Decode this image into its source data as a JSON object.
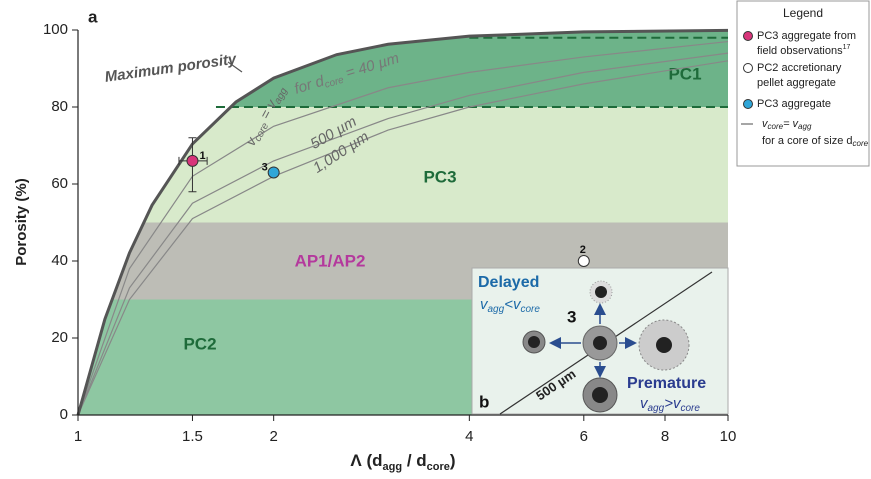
{
  "chart_data": {
    "type": "scatter",
    "panel_label": "a",
    "y_label": "Porosity (%)",
    "x_label": {
      "symbol": "Λ",
      "open": "(d",
      "sub1": "agg",
      "mid": " / d",
      "sub2": "core",
      "close": ")"
    },
    "xscale": "log",
    "xlim": [
      1,
      10
    ],
    "xticks": [
      1,
      1.5,
      2,
      4,
      6,
      8,
      10
    ],
    "ylim": [
      0,
      100
    ],
    "yticks": [
      0,
      20,
      40,
      60,
      80,
      100
    ],
    "max_curve": {
      "label": "Maximum porosity",
      "color": "#555555",
      "x": [
        1,
        1.1,
        1.2,
        1.3,
        1.5,
        1.75,
        2,
        2.5,
        3,
        4,
        6,
        10
      ],
      "values": [
        0,
        24.9,
        42.1,
        54.5,
        70.4,
        81.3,
        87.5,
        93.6,
        96.3,
        98.4,
        99.5,
        99.9
      ]
    },
    "regions": [
      {
        "label": "PC2",
        "ylim": [
          0,
          30
        ],
        "color": "#8ec7a2",
        "label_color": "#1e6b3a"
      },
      {
        "label": "AP1/AP2",
        "ylim": [
          30,
          50
        ],
        "color": "#bdbdb6",
        "label_color": "#b4399d"
      },
      {
        "label": "PC3",
        "ylim": [
          50,
          80
        ],
        "color": "#d8eacb",
        "label_color": "#1e6b3a"
      },
      {
        "label": "PC1",
        "ylim": [
          80,
          100
        ],
        "color": "#6db389",
        "label_color": "#1e6b3a"
      }
    ],
    "pc1_bounds": [
      80,
      98
    ],
    "velocity_curves": {
      "label": {
        "v1": "v",
        "s1": "core",
        "eq": " = ",
        "v2": "v",
        "s2": "agg"
      },
      "color": "#888888",
      "curves": [
        {
          "label": {
            "pre": "for d",
            "sub": "core",
            "post": " = 40 µm"
          },
          "x": [
            1,
            1.2,
            1.5,
            2,
            3,
            4,
            6,
            10
          ],
          "values": [
            0,
            38,
            62,
            75,
            85,
            89,
            93,
            97
          ]
        },
        {
          "label": {
            "pre": "",
            "sub": "",
            "post": "500 µm"
          },
          "x": [
            1,
            1.2,
            1.5,
            2,
            3,
            4,
            6,
            10
          ],
          "values": [
            0,
            33,
            55,
            66,
            77,
            83,
            89,
            94
          ]
        },
        {
          "label": {
            "pre": "",
            "sub": "",
            "post": "1,000 µm"
          },
          "x": [
            1,
            1.2,
            1.5,
            2,
            3,
            4,
            6,
            10
          ],
          "values": [
            0,
            30,
            51,
            62,
            74,
            80,
            86,
            92
          ]
        }
      ]
    },
    "points": [
      {
        "label": "1",
        "x": 1.5,
        "y": 66,
        "y_range": [
          58,
          72
        ],
        "x_range": [
          1.43,
          1.58
        ],
        "color": "#d8357a"
      },
      {
        "label": "3",
        "x": 2,
        "y": 63,
        "color": "#2fa6d8"
      },
      {
        "label": "2",
        "x": 6,
        "y": 40,
        "color": "#ffffff"
      }
    ],
    "inset": {
      "label": "b",
      "center": "3",
      "scale": "500 µm",
      "delayed": "Delayed",
      "delayed_rel": {
        "v1": "v",
        "s1": "agg",
        "op": "<",
        "v2": "v",
        "s2": "core"
      },
      "premature": "Premature",
      "premature_rel": {
        "v1": "v",
        "s1": "agg",
        "op": ">",
        "v2": "v",
        "s2": "core"
      }
    },
    "legend": {
      "title": "Legend",
      "items": [
        {
          "line1": "PC3 aggregate from",
          "line2": "field observations",
          "sup": "17"
        },
        {
          "line1": "PC2 accretionary",
          "line2": "pellet aggregate"
        },
        {
          "line1": "PC3 aggregate"
        },
        {
          "v1": "v",
          "s1": "core",
          "eq": "= ",
          "v2": "v",
          "s2": "agg",
          "line2": "for a core of size d",
          "sub2": "core"
        }
      ]
    }
  }
}
